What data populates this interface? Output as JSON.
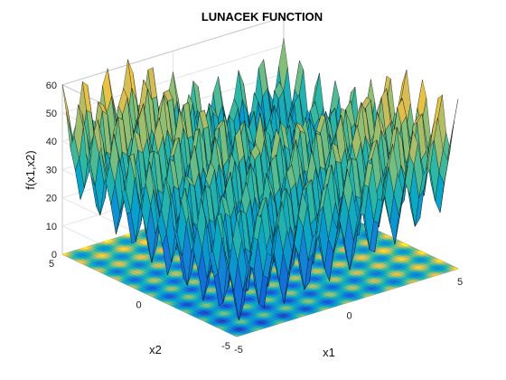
{
  "chart_data": {
    "type": "surface",
    "title": "LUNACEK FUNCTION",
    "xlabel": "x1",
    "ylabel": "x2",
    "zlabel": "f(x1,x2)",
    "xlim": [
      -5,
      5
    ],
    "ylim": [
      -5,
      5
    ],
    "zlim": [
      0,
      60
    ],
    "x_ticks": [
      "-5",
      "0",
      "5"
    ],
    "y_ticks": [
      "-5",
      "0",
      "5"
    ],
    "z_ticks": [
      "0",
      "10",
      "20",
      "30",
      "40",
      "50",
      "60"
    ],
    "grid": true,
    "colormap": "parula",
    "contour_projection": true,
    "colors": {
      "low": "#352a87",
      "mid": "#21b1a6",
      "high": "#f9fb0e",
      "edge": "#000000",
      "box": "#c8c8c8"
    }
  }
}
